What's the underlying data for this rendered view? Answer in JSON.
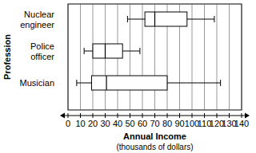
{
  "chart_data": {
    "type": "box",
    "orientation": "horizontal",
    "categories": [
      "Nuclear engineer",
      "Police officer",
      "Musician"
    ],
    "min": [
      48,
      13,
      7
    ],
    "q1": [
      62,
      20,
      19
    ],
    "median": [
      70,
      30,
      31
    ],
    "q3": [
      96,
      44,
      80
    ],
    "max": [
      118,
      58,
      123
    ],
    "color": "#000000",
    "x_label": "Annual Income",
    "x_unit_label": "(thousands of dollars)",
    "y_label": "Profession",
    "xlim": [
      0,
      140
    ],
    "xticks": [
      0,
      10,
      20,
      30,
      40,
      50,
      60,
      70,
      80,
      90,
      100,
      110,
      120,
      130,
      140
    ],
    "grid": true
  }
}
